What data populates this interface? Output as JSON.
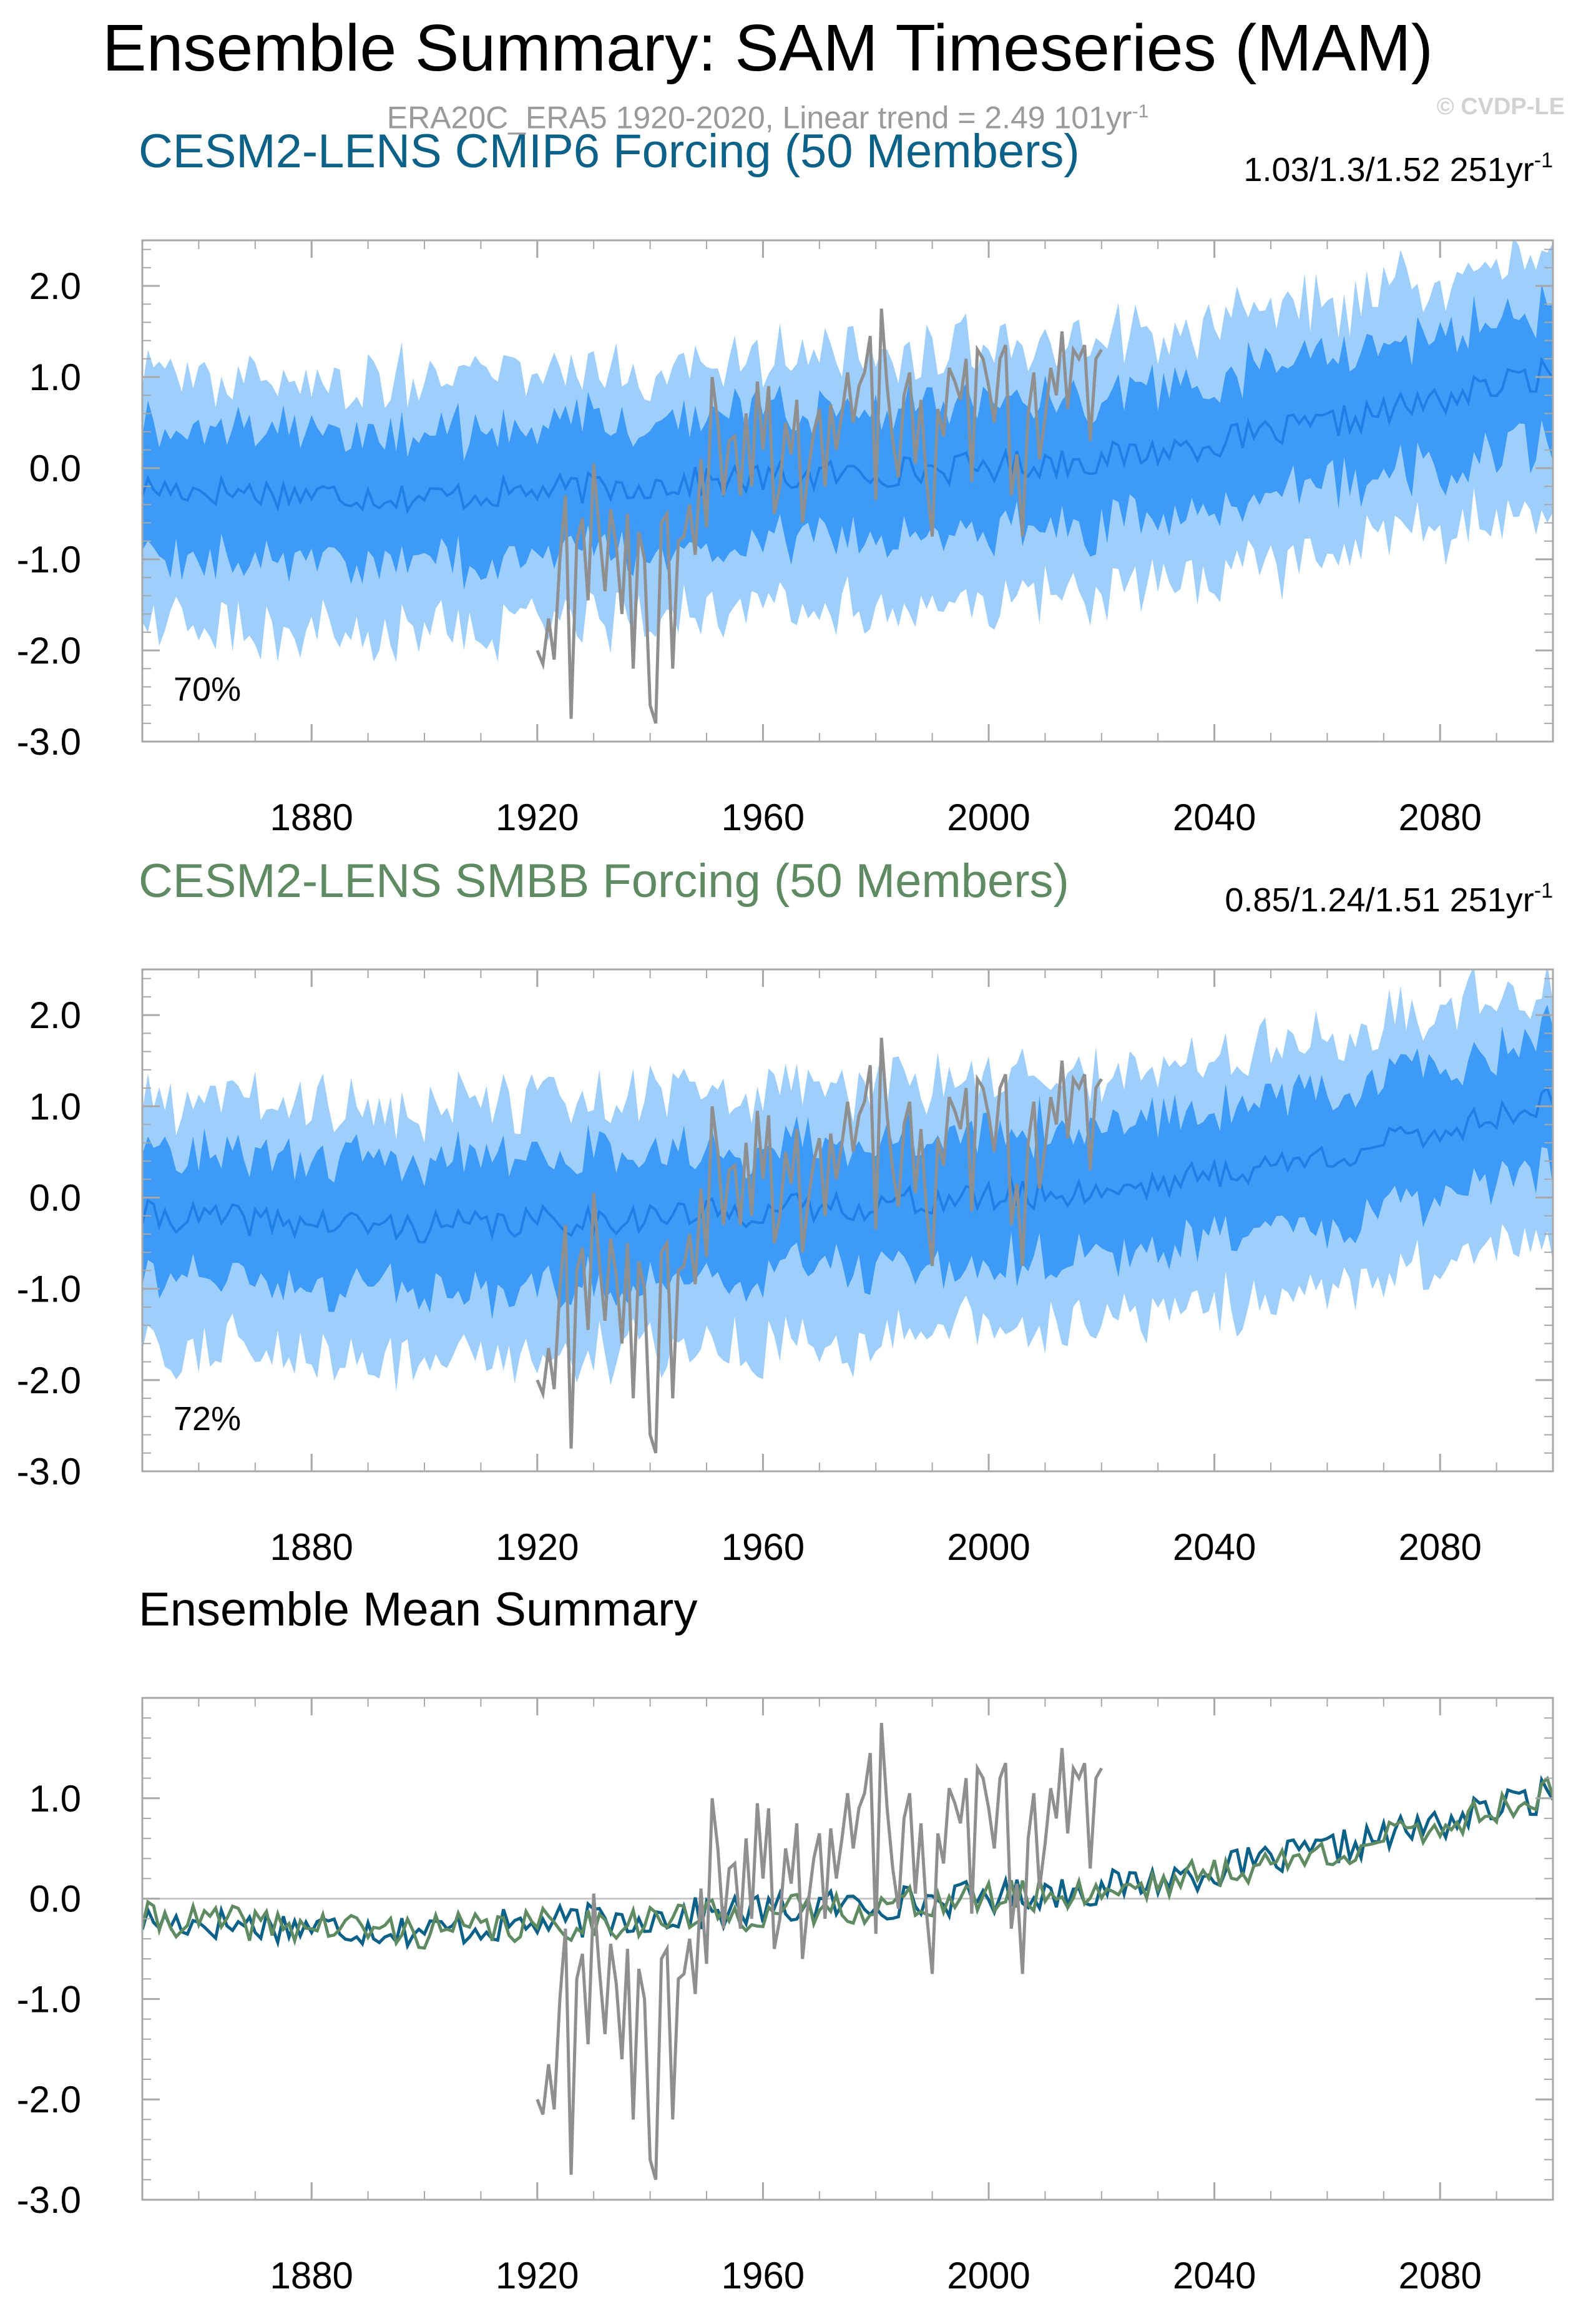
{
  "title": "Ensemble Summary: SAM Timeseries (MAM)",
  "subtitle": {
    "prefix": "ERA20C_ERA5 1920-2020, Linear trend = 2.49 101yr",
    "exp": "-1"
  },
  "watermark": "© CVDP-LE",
  "colors": {
    "band_outer": "#9ecffc",
    "band_inner": "#3d9bf7",
    "mean_line": "#1f7fe6",
    "obs": "#8f8f8f",
    "cmip6": "#0b6187",
    "smbb": "#5f8b63",
    "zero_line": "#c8c8c8",
    "frame": "#a8a8a8"
  },
  "chart_data": [
    {
      "type": "area",
      "title": "CESM2-LENS CMIP6 Forcing (50 Members)",
      "title_color": "#0b6187",
      "stat_text": "1.03/1.3/1.52 251yr",
      "stat_exp": "-1",
      "percent_label": "70%",
      "xlim": [
        1850,
        2100
      ],
      "ylim": [
        -3.0,
        2.5
      ],
      "yticks": [
        "2.0",
        "1.0",
        "0.0",
        "-1.0",
        "-2.0",
        "-3.0"
      ],
      "xticks": [
        "1880",
        "1920",
        "1960",
        "2000",
        "2040",
        "2080"
      ],
      "ensemble_mean": [
        [
          1850,
          -0.22
        ],
        [
          1900,
          -0.32
        ],
        [
          1950,
          -0.15
        ],
        [
          2000,
          0.02
        ],
        [
          2020,
          0.1
        ],
        [
          2040,
          0.28
        ],
        [
          2060,
          0.48
        ],
        [
          2080,
          0.75
        ],
        [
          2100,
          1.05
        ]
      ],
      "inner_halfwidth": 0.68,
      "outer_halfwidth": 1.25,
      "seed": 17,
      "observations": "obs_sam_1920_2020"
    },
    {
      "type": "area",
      "title": "CESM2-LENS SMBB Forcing (50 Members)",
      "title_color": "#5f8b63",
      "stat_text": "0.85/1.24/1.51 251yr",
      "stat_exp": "-1",
      "percent_label": "72%",
      "xlim": [
        1850,
        2100
      ],
      "ylim": [
        -3.0,
        2.5
      ],
      "yticks": [
        "2.0",
        "1.0",
        "0.0",
        "-1.0",
        "-2.0",
        "-3.0"
      ],
      "xticks": [
        "1880",
        "1920",
        "1960",
        "2000",
        "2040",
        "2080"
      ],
      "ensemble_mean": [
        [
          1850,
          -0.2
        ],
        [
          1900,
          -0.33
        ],
        [
          1950,
          -0.18
        ],
        [
          2000,
          0.0
        ],
        [
          2020,
          0.08
        ],
        [
          2040,
          0.25
        ],
        [
          2060,
          0.45
        ],
        [
          2080,
          0.72
        ],
        [
          2100,
          1.08
        ]
      ],
      "inner_halfwidth": 0.68,
      "outer_halfwidth": 1.25,
      "seed": 41,
      "observations": "obs_sam_1920_2020"
    },
    {
      "type": "line",
      "title": "Ensemble Mean Summary",
      "title_color": "#000000",
      "xlim": [
        1850,
        2100
      ],
      "ylim": [
        -3.0,
        2.0
      ],
      "yticks": [
        "1.0",
        "0.0",
        "-1.0",
        "-2.0",
        "-3.0"
      ],
      "xticks": [
        "1880",
        "1920",
        "1960",
        "2000",
        "2040",
        "2080"
      ],
      "series": [
        {
          "name": "CESM2-LENS CMIP6 Forcing",
          "color": "#0b6187",
          "seed": 17
        },
        {
          "name": "CESM2-LENS SMBB Forcing",
          "color": "#5f8b63",
          "seed": 41
        },
        {
          "name": "ERA20C_ERA5",
          "color": "#8f8f8f",
          "source": "obs_sam_1920_2020"
        }
      ]
    }
  ],
  "obs_sam_1920_2020": {
    "x": [
      1920,
      1921,
      1922,
      1923,
      1924,
      1925,
      1926,
      1927,
      1928,
      1929,
      1930,
      1931,
      1932,
      1933,
      1934,
      1935,
      1936,
      1937,
      1938,
      1939,
      1940,
      1941,
      1942,
      1943,
      1944,
      1945,
      1946,
      1947,
      1948,
      1949,
      1950,
      1951,
      1952,
      1953,
      1954,
      1955,
      1956,
      1957,
      1958,
      1959,
      1960,
      1961,
      1962,
      1963,
      1964,
      1965,
      1966,
      1967,
      1968,
      1969,
      1970,
      1971,
      1972,
      1973,
      1974,
      1975,
      1976,
      1977,
      1978,
      1979,
      1980,
      1981,
      1982,
      1983,
      1984,
      1985,
      1986,
      1987,
      1988,
      1989,
      1990,
      1991,
      1992,
      1993,
      1994,
      1995,
      1996,
      1997,
      1998,
      1999,
      2000,
      2001,
      2002,
      2003,
      2004,
      2005,
      2006,
      2007,
      2008,
      2009,
      2010,
      2011,
      2012,
      2013,
      2014,
      2015,
      2016,
      2017,
      2018,
      2019,
      2020
    ],
    "y": [
      -2.0,
      -2.15,
      -1.65,
      -2.1,
      -1.0,
      -0.3,
      -2.75,
      -0.8,
      -0.55,
      -1.45,
      0.05,
      -0.7,
      -1.35,
      -0.45,
      -0.85,
      -1.6,
      -0.5,
      -2.2,
      -0.7,
      -1.0,
      -2.6,
      -2.8,
      -0.6,
      -0.5,
      -2.2,
      -0.8,
      -0.75,
      -0.4,
      -0.95,
      0.1,
      -0.65,
      1.0,
      0.5,
      -0.3,
      0.3,
      0.35,
      -0.3,
      0.6,
      -0.2,
      0.95,
      0.2,
      0.9,
      -0.5,
      -0.2,
      0.5,
      0.15,
      0.75,
      -0.6,
      -0.05,
      0.4,
      0.65,
      -0.2,
      0.7,
      0.2,
      0.6,
      1.05,
      0.5,
      0.9,
      1.05,
      1.45,
      -0.35,
      1.75,
      0.9,
      0.3,
      -0.1,
      0.8,
      1.05,
      0.05,
      0.75,
      -0.15,
      -0.75,
      0.65,
      0.35,
      1.1,
      0.95,
      0.75,
      1.2,
      -0.15,
      1.3,
      1.2,
      0.9,
      0.5,
      1.2,
      1.35,
      -0.3,
      0.15,
      -0.75,
      0.6,
      1.05,
      0.1,
      0.55,
      1.1,
      0.8,
      1.5,
      0.65,
      1.3,
      1.2,
      1.35,
      0.3,
      1.2,
      1.3
    ]
  }
}
